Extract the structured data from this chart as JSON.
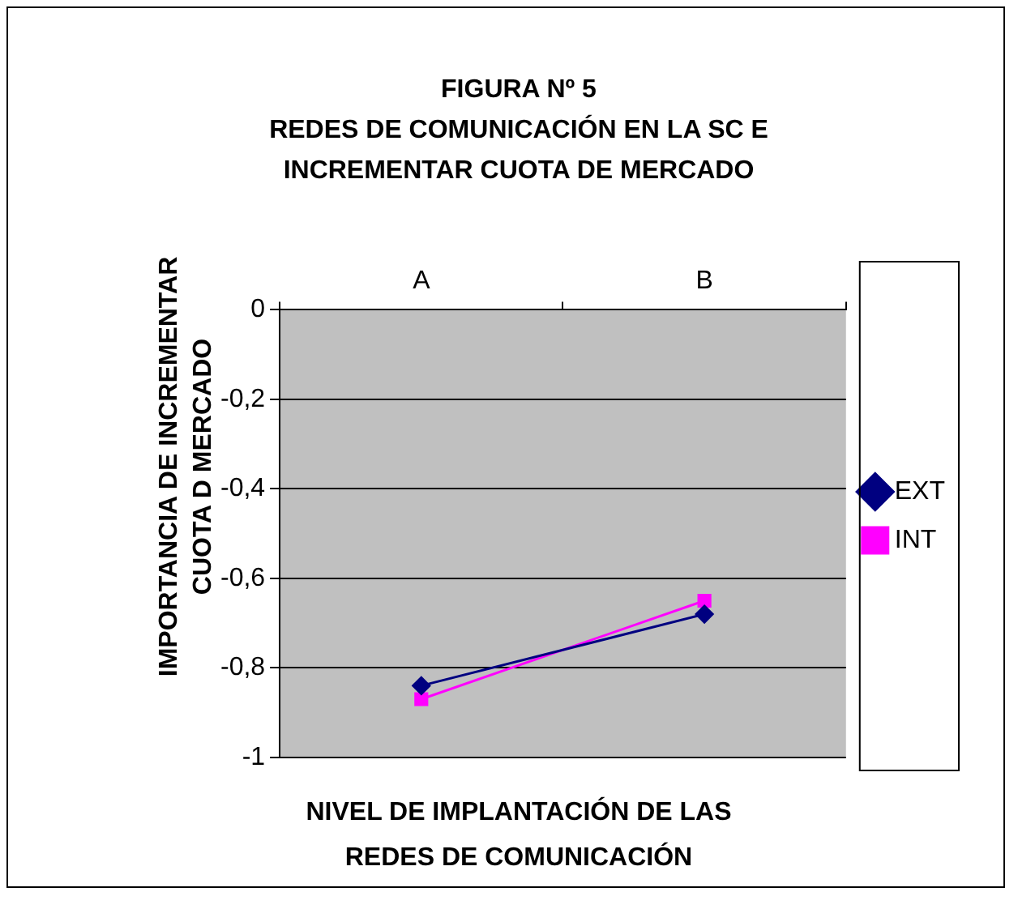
{
  "chart_data": {
    "type": "line",
    "title": "FIGURA Nº 5",
    "subtitle": "REDES DE COMUNICACIÓN EN LA SC E INCREMENTAR CUOTA DE MERCADO",
    "xlabel": "NIVEL DE IMPLANTACIÓN DE LAS REDES DE COMUNICACIÓN",
    "ylabel": "IMPORTANCIA DE INCREMENTAR CUOTA D MERCADO",
    "categories": [
      "A",
      "B"
    ],
    "series": [
      {
        "name": "EXT",
        "color": "#000080",
        "marker": "diamond",
        "values": [
          -0.84,
          -0.68
        ]
      },
      {
        "name": "INT",
        "color": "#ff00ff",
        "marker": "square",
        "values": [
          -0.87,
          -0.65
        ]
      }
    ],
    "ylim": [
      -1,
      0
    ],
    "yticks": [
      0,
      {
        "value": -0.2,
        "label": "-0,2"
      },
      {
        "value": -0.4,
        "label": "-0,4"
      },
      {
        "value": -0.6,
        "label": "-0,6"
      },
      {
        "value": -0.8,
        "label": "-0,8"
      },
      -1
    ],
    "grid": "y",
    "legend": "right"
  }
}
